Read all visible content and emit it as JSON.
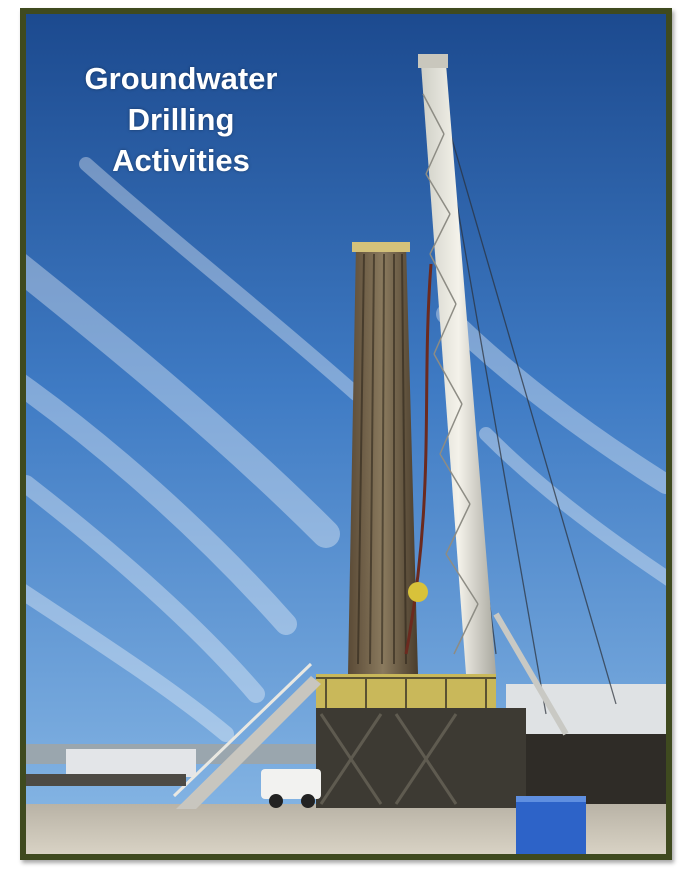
{
  "title": {
    "lines": [
      "Groundwater",
      "Drilling",
      "Activities"
    ]
  },
  "colors": {
    "frame": "#3f4a1f",
    "sky_top": "#1f4f95",
    "sky_bottom": "#7fb1e3",
    "title_text": "#ffffff"
  },
  "photo": {
    "subject": "drilling-rig-photo"
  }
}
